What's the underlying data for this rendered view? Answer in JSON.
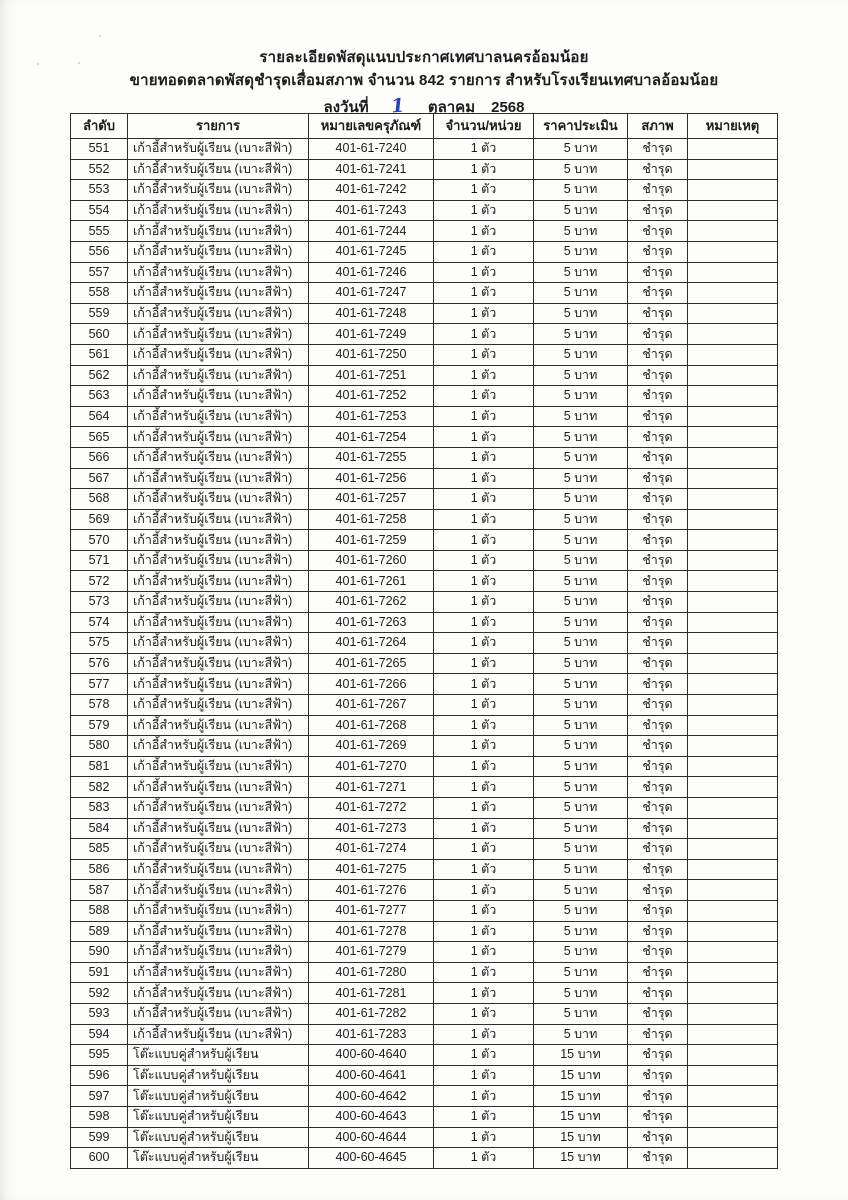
{
  "header": {
    "line1": "รายละเอียดพัสดุแนบประกาศเทศบาลนครอ้อมน้อย",
    "line2": "ขายทอดตลาดพัสดุชำรุดเสื่อมสภาพ จำนวน 842 รายการ สำหรับโรงเรียนเทศบาลอ้อมน้อย",
    "date_prefix": "ลงวันที่",
    "date_day_handwritten": "1",
    "date_month": "ตุลาคม",
    "date_year": "2568",
    "handwriting_color": "#2543bd",
    "ink_color": "#1c1c1c"
  },
  "table": {
    "columns": [
      "ลำดับ",
      "รายการ",
      "หมายเลขครุภัณฑ์",
      "จำนวน/หน่วย",
      "ราคาประเมิน",
      "สภาพ",
      "หมายเหตุ"
    ],
    "rows": [
      [
        "551",
        "เก้าอี้สำหรับผู้เรียน (เบาะสีฟ้า)",
        "401-61-7240",
        "1 ตัว",
        "5 บาท",
        "ชำรุด",
        ""
      ],
      [
        "552",
        "เก้าอี้สำหรับผู้เรียน (เบาะสีฟ้า)",
        "401-61-7241",
        "1 ตัว",
        "5 บาท",
        "ชำรุด",
        ""
      ],
      [
        "553",
        "เก้าอี้สำหรับผู้เรียน (เบาะสีฟ้า)",
        "401-61-7242",
        "1 ตัว",
        "5 บาท",
        "ชำรุด",
        ""
      ],
      [
        "554",
        "เก้าอี้สำหรับผู้เรียน (เบาะสีฟ้า)",
        "401-61-7243",
        "1 ตัว",
        "5 บาท",
        "ชำรุด",
        ""
      ],
      [
        "555",
        "เก้าอี้สำหรับผู้เรียน (เบาะสีฟ้า)",
        "401-61-7244",
        "1 ตัว",
        "5 บาท",
        "ชำรุด",
        ""
      ],
      [
        "556",
        "เก้าอี้สำหรับผู้เรียน (เบาะสีฟ้า)",
        "401-61-7245",
        "1 ตัว",
        "5 บาท",
        "ชำรุด",
        ""
      ],
      [
        "557",
        "เก้าอี้สำหรับผู้เรียน (เบาะสีฟ้า)",
        "401-61-7246",
        "1 ตัว",
        "5 บาท",
        "ชำรุด",
        ""
      ],
      [
        "558",
        "เก้าอี้สำหรับผู้เรียน (เบาะสีฟ้า)",
        "401-61-7247",
        "1 ตัว",
        "5 บาท",
        "ชำรุด",
        ""
      ],
      [
        "559",
        "เก้าอี้สำหรับผู้เรียน (เบาะสีฟ้า)",
        "401-61-7248",
        "1 ตัว",
        "5 บาท",
        "ชำรุด",
        ""
      ],
      [
        "560",
        "เก้าอี้สำหรับผู้เรียน (เบาะสีฟ้า)",
        "401-61-7249",
        "1 ตัว",
        "5 บาท",
        "ชำรุด",
        ""
      ],
      [
        "561",
        "เก้าอี้สำหรับผู้เรียน (เบาะสีฟ้า)",
        "401-61-7250",
        "1 ตัว",
        "5 บาท",
        "ชำรุด",
        ""
      ],
      [
        "562",
        "เก้าอี้สำหรับผู้เรียน (เบาะสีฟ้า)",
        "401-61-7251",
        "1 ตัว",
        "5 บาท",
        "ชำรุด",
        ""
      ],
      [
        "563",
        "เก้าอี้สำหรับผู้เรียน (เบาะสีฟ้า)",
        "401-61-7252",
        "1 ตัว",
        "5 บาท",
        "ชำรุด",
        ""
      ],
      [
        "564",
        "เก้าอี้สำหรับผู้เรียน (เบาะสีฟ้า)",
        "401-61-7253",
        "1 ตัว",
        "5 บาท",
        "ชำรุด",
        ""
      ],
      [
        "565",
        "เก้าอี้สำหรับผู้เรียน (เบาะสีฟ้า)",
        "401-61-7254",
        "1 ตัว",
        "5 บาท",
        "ชำรุด",
        ""
      ],
      [
        "566",
        "เก้าอี้สำหรับผู้เรียน (เบาะสีฟ้า)",
        "401-61-7255",
        "1 ตัว",
        "5 บาท",
        "ชำรุด",
        ""
      ],
      [
        "567",
        "เก้าอี้สำหรับผู้เรียน (เบาะสีฟ้า)",
        "401-61-7256",
        "1 ตัว",
        "5 บาท",
        "ชำรุด",
        ""
      ],
      [
        "568",
        "เก้าอี้สำหรับผู้เรียน (เบาะสีฟ้า)",
        "401-61-7257",
        "1 ตัว",
        "5 บาท",
        "ชำรุด",
        ""
      ],
      [
        "569",
        "เก้าอี้สำหรับผู้เรียน (เบาะสีฟ้า)",
        "401-61-7258",
        "1 ตัว",
        "5 บาท",
        "ชำรุด",
        ""
      ],
      [
        "570",
        "เก้าอี้สำหรับผู้เรียน (เบาะสีฟ้า)",
        "401-61-7259",
        "1 ตัว",
        "5 บาท",
        "ชำรุด",
        ""
      ],
      [
        "571",
        "เก้าอี้สำหรับผู้เรียน (เบาะสีฟ้า)",
        "401-61-7260",
        "1 ตัว",
        "5 บาท",
        "ชำรุด",
        ""
      ],
      [
        "572",
        "เก้าอี้สำหรับผู้เรียน (เบาะสีฟ้า)",
        "401-61-7261",
        "1 ตัว",
        "5 บาท",
        "ชำรุด",
        ""
      ],
      [
        "573",
        "เก้าอี้สำหรับผู้เรียน (เบาะสีฟ้า)",
        "401-61-7262",
        "1 ตัว",
        "5 บาท",
        "ชำรุด",
        ""
      ],
      [
        "574",
        "เก้าอี้สำหรับผู้เรียน (เบาะสีฟ้า)",
        "401-61-7263",
        "1 ตัว",
        "5 บาท",
        "ชำรุด",
        ""
      ],
      [
        "575",
        "เก้าอี้สำหรับผู้เรียน (เบาะสีฟ้า)",
        "401-61-7264",
        "1 ตัว",
        "5 บาท",
        "ชำรุด",
        ""
      ],
      [
        "576",
        "เก้าอี้สำหรับผู้เรียน (เบาะสีฟ้า)",
        "401-61-7265",
        "1 ตัว",
        "5 บาท",
        "ชำรุด",
        ""
      ],
      [
        "577",
        "เก้าอี้สำหรับผู้เรียน (เบาะสีฟ้า)",
        "401-61-7266",
        "1 ตัว",
        "5 บาท",
        "ชำรุด",
        ""
      ],
      [
        "578",
        "เก้าอี้สำหรับผู้เรียน (เบาะสีฟ้า)",
        "401-61-7267",
        "1 ตัว",
        "5 บาท",
        "ชำรุด",
        ""
      ],
      [
        "579",
        "เก้าอี้สำหรับผู้เรียน (เบาะสีฟ้า)",
        "401-61-7268",
        "1 ตัว",
        "5 บาท",
        "ชำรุด",
        ""
      ],
      [
        "580",
        "เก้าอี้สำหรับผู้เรียน (เบาะสีฟ้า)",
        "401-61-7269",
        "1 ตัว",
        "5 บาท",
        "ชำรุด",
        ""
      ],
      [
        "581",
        "เก้าอี้สำหรับผู้เรียน (เบาะสีฟ้า)",
        "401-61-7270",
        "1 ตัว",
        "5 บาท",
        "ชำรุด",
        ""
      ],
      [
        "582",
        "เก้าอี้สำหรับผู้เรียน (เบาะสีฟ้า)",
        "401-61-7271",
        "1 ตัว",
        "5 บาท",
        "ชำรุด",
        ""
      ],
      [
        "583",
        "เก้าอี้สำหรับผู้เรียน (เบาะสีฟ้า)",
        "401-61-7272",
        "1 ตัว",
        "5 บาท",
        "ชำรุด",
        ""
      ],
      [
        "584",
        "เก้าอี้สำหรับผู้เรียน (เบาะสีฟ้า)",
        "401-61-7273",
        "1 ตัว",
        "5 บาท",
        "ชำรุด",
        ""
      ],
      [
        "585",
        "เก้าอี้สำหรับผู้เรียน (เบาะสีฟ้า)",
        "401-61-7274",
        "1 ตัว",
        "5 บาท",
        "ชำรุด",
        ""
      ],
      [
        "586",
        "เก้าอี้สำหรับผู้เรียน (เบาะสีฟ้า)",
        "401-61-7275",
        "1 ตัว",
        "5 บาท",
        "ชำรุด",
        ""
      ],
      [
        "587",
        "เก้าอี้สำหรับผู้เรียน (เบาะสีฟ้า)",
        "401-61-7276",
        "1 ตัว",
        "5 บาท",
        "ชำรุด",
        ""
      ],
      [
        "588",
        "เก้าอี้สำหรับผู้เรียน (เบาะสีฟ้า)",
        "401-61-7277",
        "1 ตัว",
        "5 บาท",
        "ชำรุด",
        ""
      ],
      [
        "589",
        "เก้าอี้สำหรับผู้เรียน (เบาะสีฟ้า)",
        "401-61-7278",
        "1 ตัว",
        "5 บาท",
        "ชำรุด",
        ""
      ],
      [
        "590",
        "เก้าอี้สำหรับผู้เรียน (เบาะสีฟ้า)",
        "401-61-7279",
        "1 ตัว",
        "5 บาท",
        "ชำรุด",
        ""
      ],
      [
        "591",
        "เก้าอี้สำหรับผู้เรียน (เบาะสีฟ้า)",
        "401-61-7280",
        "1 ตัว",
        "5 บาท",
        "ชำรุด",
        ""
      ],
      [
        "592",
        "เก้าอี้สำหรับผู้เรียน (เบาะสีฟ้า)",
        "401-61-7281",
        "1 ตัว",
        "5 บาท",
        "ชำรุด",
        ""
      ],
      [
        "593",
        "เก้าอี้สำหรับผู้เรียน (เบาะสีฟ้า)",
        "401-61-7282",
        "1 ตัว",
        "5 บาท",
        "ชำรุด",
        ""
      ],
      [
        "594",
        "เก้าอี้สำหรับผู้เรียน (เบาะสีฟ้า)",
        "401-61-7283",
        "1 ตัว",
        "5 บาท",
        "ชำรุด",
        ""
      ],
      [
        "595",
        "โต๊ะแบบคู่สำหรับผู้เรียน",
        "400-60-4640",
        "1 ตัว",
        "15 บาท",
        "ชำรุด",
        ""
      ],
      [
        "596",
        "โต๊ะแบบคู่สำหรับผู้เรียน",
        "400-60-4641",
        "1 ตัว",
        "15 บาท",
        "ชำรุด",
        ""
      ],
      [
        "597",
        "โต๊ะแบบคู่สำหรับผู้เรียน",
        "400-60-4642",
        "1 ตัว",
        "15 บาท",
        "ชำรุด",
        ""
      ],
      [
        "598",
        "โต๊ะแบบคู่สำหรับผู้เรียน",
        "400-60-4643",
        "1 ตัว",
        "15 บาท",
        "ชำรุด",
        ""
      ],
      [
        "599",
        "โต๊ะแบบคู่สำหรับผู้เรียน",
        "400-60-4644",
        "1 ตัว",
        "15 บาท",
        "ชำรุด",
        ""
      ],
      [
        "600",
        "โต๊ะแบบคู่สำหรับผู้เรียน",
        "400-60-4645",
        "1 ตัว",
        "15 บาท",
        "ชำรุด",
        ""
      ]
    ]
  }
}
